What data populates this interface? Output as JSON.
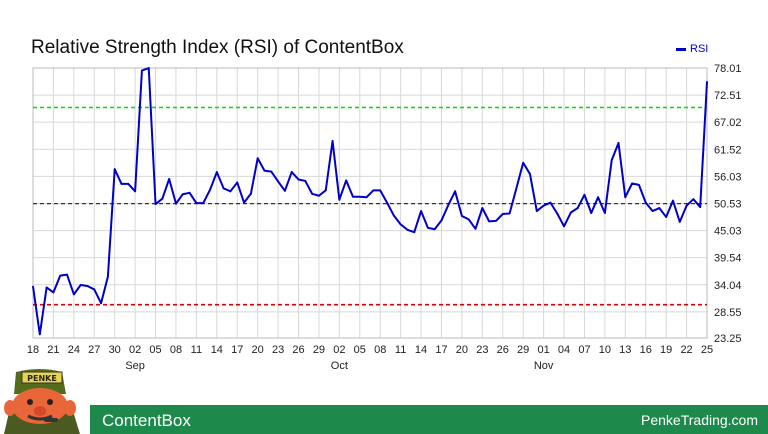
{
  "title": "Relative Strength Index (RSI) of ContentBox",
  "footer": {
    "name": "ContentBox",
    "site": "PenkeTrading.com",
    "mascot_badge": "PENKE"
  },
  "colors": {
    "series": "#0000cc",
    "overbought": "#00dd00",
    "oversold": "#dd0000",
    "midline": "#333333",
    "grid": "#d8d8d8",
    "footer": "#1d8a4b"
  },
  "chart_data": {
    "type": "line",
    "series": [
      {
        "name": "RSI",
        "values": [
          33.7,
          24.0,
          33.5,
          32.5,
          35.9,
          36.1,
          32.1,
          34.0,
          33.8,
          33.1,
          30.3,
          35.7,
          57.5,
          54.5,
          54.5,
          53.0,
          77.5,
          78.0,
          50.4,
          51.5,
          55.5,
          50.5,
          52.4,
          52.7,
          50.6,
          50.6,
          53.3,
          56.9,
          53.6,
          53.0,
          54.8,
          50.7,
          52.5,
          59.7,
          57.2,
          57.0,
          55.0,
          53.1,
          56.9,
          55.4,
          55.1,
          52.5,
          52.1,
          53.2,
          63.2,
          51.3,
          55.2,
          51.9,
          51.9,
          51.8,
          53.2,
          53.2,
          50.7,
          48.1,
          46.3,
          45.2,
          44.7,
          49.0,
          45.6,
          45.3,
          47.1,
          50.2,
          53.0,
          48.0,
          47.3,
          45.4,
          49.6,
          46.9,
          47.0,
          48.4,
          48.5,
          53.6,
          58.8,
          56.5,
          49.0,
          50.1,
          50.7,
          48.5,
          45.9,
          48.7,
          49.6,
          52.3,
          48.6,
          51.8,
          48.6,
          59.3,
          62.8,
          51.8,
          54.6,
          54.3,
          50.7,
          49.0,
          49.6,
          47.8,
          51.1,
          46.8,
          50.1,
          51.4,
          49.8,
          75.2
        ]
      }
    ],
    "x_tick_labels": [
      "18",
      "21",
      "24",
      "27",
      "30",
      "02",
      "05",
      "08",
      "11",
      "14",
      "17",
      "20",
      "23",
      "26",
      "29",
      "02",
      "05",
      "08",
      "11",
      "14",
      "17",
      "20",
      "23",
      "26",
      "29",
      "01",
      "04",
      "07",
      "10",
      "13",
      "16",
      "19",
      "22",
      "25"
    ],
    "month_labels": [
      "Sep",
      "Oct",
      "Nov"
    ],
    "y_ticks": [
      78.01,
      72.51,
      67.02,
      61.52,
      56.03,
      50.53,
      45.03,
      39.54,
      34.04,
      28.55,
      23.25
    ],
    "ylim": [
      23.25,
      78.01
    ],
    "reference_lines": [
      {
        "label": "overbought",
        "value": 70
      },
      {
        "label": "midline",
        "value": 50.5
      },
      {
        "label": "oversold",
        "value": 30
      }
    ],
    "legend_position": "top-right",
    "grid": true
  }
}
